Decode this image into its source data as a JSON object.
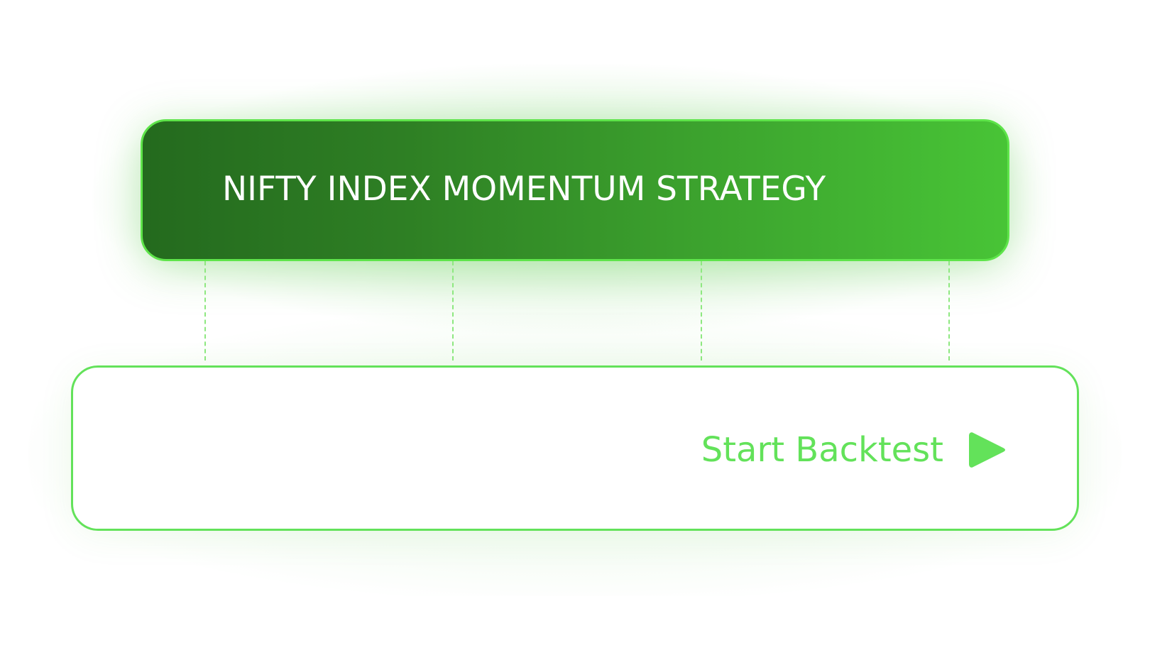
{
  "strategy": {
    "title": "NIFTY INDEX MOMENTUM STRATEGY"
  },
  "backtest": {
    "button_label": "Start Backtest",
    "button_icon": "play-icon"
  },
  "colors": {
    "accent": "#63e25a",
    "card_gradient_start": "#246a1e",
    "card_gradient_end": "#48c436",
    "connector": "#8ee880"
  }
}
